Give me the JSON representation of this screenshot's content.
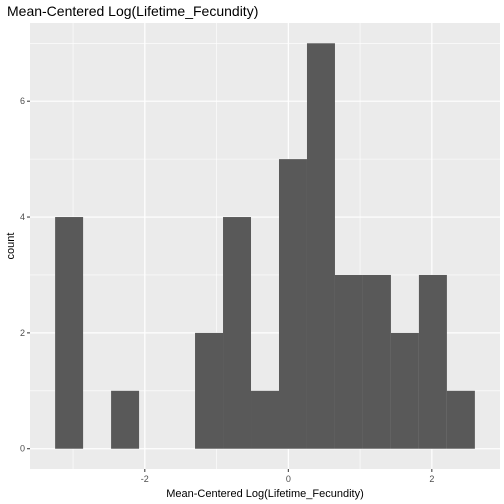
{
  "chart_data": {
    "type": "bar",
    "title": "Mean-Centered Log(Lifetime_Fecundity)",
    "xlabel": "Mean-Centered Log(Lifetime_Fecundity)",
    "ylabel": "count",
    "bins": [
      {
        "x0": -3.25,
        "x1": -2.86,
        "count": 4
      },
      {
        "x0": -2.86,
        "x1": -2.47,
        "count": 0
      },
      {
        "x0": -2.47,
        "x1": -2.08,
        "count": 1
      },
      {
        "x0": -2.08,
        "x1": -1.69,
        "count": 0
      },
      {
        "x0": -1.69,
        "x1": -1.3,
        "count": 0
      },
      {
        "x0": -1.3,
        "x1": -0.91,
        "count": 2
      },
      {
        "x0": -0.91,
        "x1": -0.52,
        "count": 4
      },
      {
        "x0": -0.52,
        "x1": -0.13,
        "count": 1
      },
      {
        "x0": -0.13,
        "x1": 0.26,
        "count": 5
      },
      {
        "x0": 0.26,
        "x1": 0.65,
        "count": 7
      },
      {
        "x0": 0.65,
        "x1": 1.04,
        "count": 3
      },
      {
        "x0": 1.04,
        "x1": 1.43,
        "count": 3
      },
      {
        "x0": 1.43,
        "x1": 1.82,
        "count": 2
      },
      {
        "x0": 1.82,
        "x1": 2.21,
        "count": 3
      },
      {
        "x0": 2.21,
        "x1": 2.6,
        "count": 1
      }
    ],
    "xticks": [
      -2,
      0,
      2
    ],
    "yticks": [
      0,
      2,
      4,
      6
    ],
    "xlim": [
      -3.6,
      2.95
    ],
    "ylim": [
      -0.35,
      7.35
    ],
    "bar_color": "#595959",
    "panel_color": "#ebebeb",
    "grid_color": "#ffffff"
  }
}
